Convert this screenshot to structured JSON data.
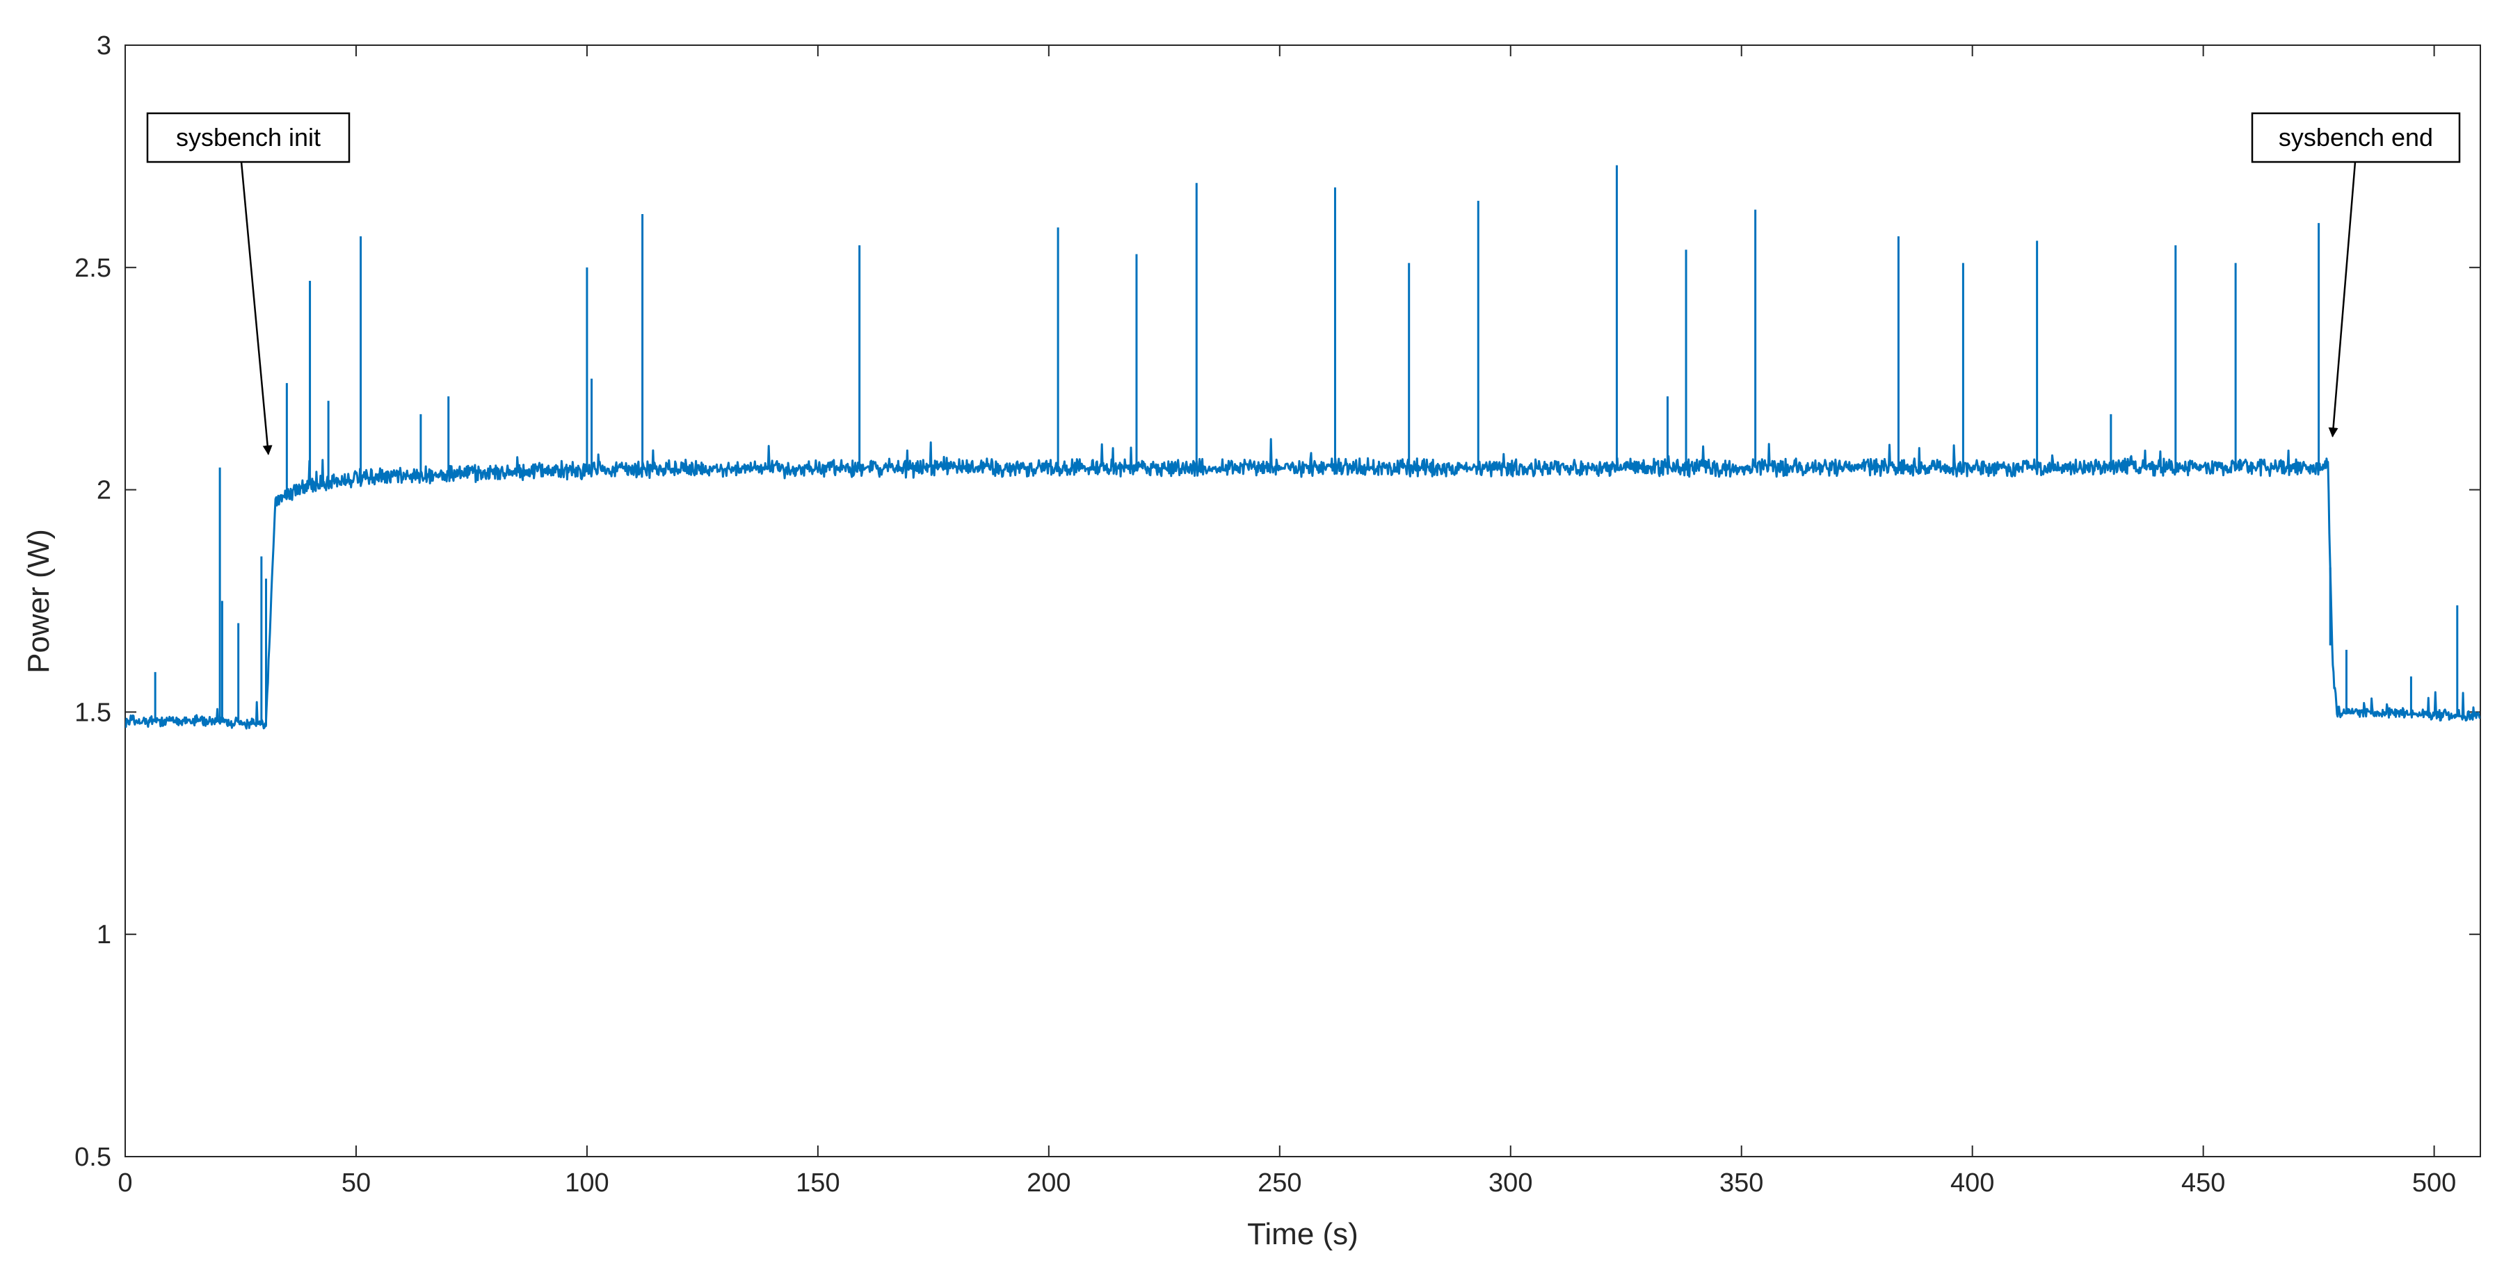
{
  "colors": {
    "line": "#0072BD",
    "axes": "#262626",
    "background": "#ffffff",
    "annotation": "#000000"
  },
  "chart_data": {
    "type": "line",
    "title": "",
    "xlabel": "Time (s)",
    "ylabel": "Power (W)",
    "xlim": [
      0,
      510
    ],
    "ylim": [
      0.5,
      3
    ],
    "xticks": [
      0,
      50,
      100,
      150,
      200,
      250,
      300,
      350,
      400,
      450,
      500
    ],
    "xtick_labels": [
      "0",
      "50",
      "100",
      "150",
      "200",
      "250",
      "300",
      "350",
      "400",
      "450",
      "500"
    ],
    "yticks": [
      0.5,
      1,
      1.5,
      2,
      2.5,
      3
    ],
    "ytick_labels": [
      "0.5",
      "1",
      "1.5",
      "2",
      "2.5",
      "3"
    ],
    "grid": false,
    "legend": "none",
    "series": [
      {
        "baseline": [
          [
            0,
            1.48
          ],
          [
            20,
            1.48
          ],
          [
            30.5,
            1.47
          ],
          [
            32.5,
            1.98
          ],
          [
            35,
            1.99
          ],
          [
            40,
            2.01
          ],
          [
            50,
            2.025
          ],
          [
            60,
            2.03
          ],
          [
            80,
            2.04
          ],
          [
            100,
            2.045
          ],
          [
            200,
            2.05
          ],
          [
            300,
            2.05
          ],
          [
            400,
            2.05
          ],
          [
            470,
            2.05
          ],
          [
            477,
            2.05
          ],
          [
            478,
            1.6
          ],
          [
            479,
            1.5
          ],
          [
            485,
            1.5
          ],
          [
            510,
            1.49
          ]
        ],
        "spikes": [
          [
            6.5,
            1.59
          ],
          [
            20.5,
            2.05
          ],
          [
            21,
            1.75
          ],
          [
            24.5,
            1.7
          ],
          [
            29.5,
            1.85
          ],
          [
            30.5,
            1.8
          ],
          [
            35,
            2.24
          ],
          [
            40,
            2.47
          ],
          [
            44,
            2.2
          ],
          [
            51,
            2.57
          ],
          [
            64,
            2.17
          ],
          [
            70,
            2.21
          ],
          [
            100,
            2.5
          ],
          [
            101,
            2.25
          ],
          [
            112,
            2.62
          ],
          [
            159,
            2.55
          ],
          [
            202,
            2.59
          ],
          [
            219,
            2.53
          ],
          [
            232,
            2.69
          ],
          [
            262,
            2.68
          ],
          [
            278,
            2.51
          ],
          [
            293,
            2.65
          ],
          [
            323,
            2.73
          ],
          [
            334,
            2.21
          ],
          [
            338,
            2.54
          ],
          [
            353,
            2.63
          ],
          [
            384,
            2.57
          ],
          [
            398,
            2.51
          ],
          [
            414,
            2.56
          ],
          [
            430,
            2.17
          ],
          [
            444,
            2.55
          ],
          [
            457,
            2.51
          ],
          [
            475,
            2.6
          ],
          [
            477.5,
            1.65
          ],
          [
            481,
            1.64
          ],
          [
            495,
            1.58
          ],
          [
            505,
            1.74
          ]
        ]
      }
    ],
    "annotations": [
      {
        "text": "sysbench init",
        "arrow_to": [
          31,
          2.08
        ]
      },
      {
        "text": "sysbench end",
        "arrow_to": [
          478,
          2.12
        ]
      }
    ]
  }
}
